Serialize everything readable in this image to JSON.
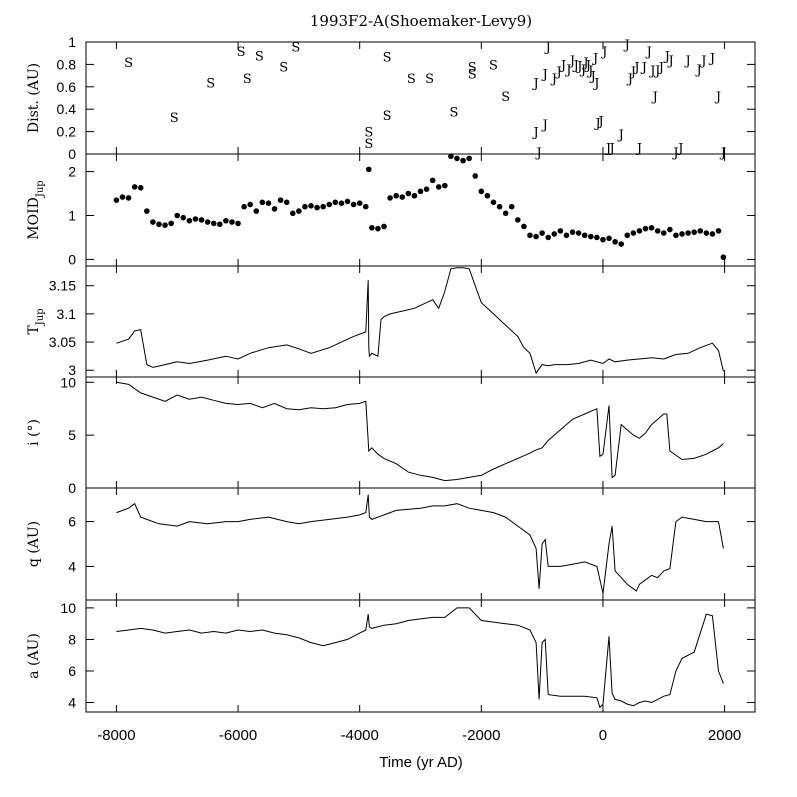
{
  "title": "1993F2-A(Shoemaker-Levy9)",
  "xlabel": "Time (yr AD)",
  "x_ticks": [
    "-8000",
    "-6000",
    "-4000",
    "-2000",
    "0",
    "2000"
  ],
  "panels": [
    {
      "id": "dist",
      "ylabel": "Dist. (AU)",
      "ylabel_sub": "",
      "ticks": [
        "0",
        "0.2",
        "0.4",
        "0.6",
        "0.8",
        "1"
      ]
    },
    {
      "id": "moid",
      "ylabel": "MOID",
      "ylabel_sub": "Jup",
      "ticks": [
        "0",
        "1",
        "2"
      ]
    },
    {
      "id": "tjup",
      "ylabel": "T",
      "ylabel_sub": "Jup",
      "ticks": [
        "3",
        "3.05",
        "3.1",
        "3.15"
      ]
    },
    {
      "id": "inc",
      "ylabel": "i (°)",
      "ylabel_sub": "",
      "ticks": [
        "0",
        "5",
        "10"
      ]
    },
    {
      "id": "q",
      "ylabel": "q (AU)",
      "ylabel_sub": "",
      "ticks": [
        "4",
        "6"
      ]
    },
    {
      "id": "a",
      "ylabel": "a (AU)",
      "ylabel_sub": "",
      "ticks": [
        "4",
        "6",
        "8",
        "10"
      ]
    }
  ],
  "chart_data": [
    {
      "type": "scatter",
      "panel": "dist",
      "ylabel": "Dist. (AU)",
      "xlim": [
        -8500,
        2500
      ],
      "ylim": [
        0,
        1
      ],
      "series": [
        {
          "label": "S",
          "points": [
            [
              -7800,
              0.82
            ],
            [
              -7050,
              0.33
            ],
            [
              -6450,
              0.64
            ],
            [
              -5950,
              0.92
            ],
            [
              -5850,
              0.68
            ],
            [
              -5650,
              0.88
            ],
            [
              -5250,
              0.78
            ],
            [
              -5050,
              0.96
            ],
            [
              -3850,
              0.2
            ],
            [
              -3850,
              0.1
            ],
            [
              -3550,
              0.35
            ],
            [
              -3550,
              0.87
            ],
            [
              -3150,
              0.68
            ],
            [
              -2850,
              0.68
            ],
            [
              -2450,
              0.38
            ],
            [
              -2150,
              0.72
            ],
            [
              -2150,
              0.78
            ],
            [
              -1800,
              0.8
            ],
            [
              -1600,
              0.52
            ]
          ]
        },
        {
          "label": "J",
          "points": [
            [
              -1100,
              0.64
            ],
            [
              -1100,
              0.2
            ],
            [
              -950,
              0.27
            ],
            [
              -950,
              0.72
            ],
            [
              -1050,
              0.02
            ],
            [
              -900,
              0.96
            ],
            [
              -800,
              0.68
            ],
            [
              -720,
              0.74
            ],
            [
              -650,
              0.8
            ],
            [
              -560,
              0.76
            ],
            [
              -500,
              0.84
            ],
            [
              -440,
              0.8
            ],
            [
              -380,
              0.79
            ],
            [
              -320,
              0.76
            ],
            [
              -280,
              0.82
            ],
            [
              -240,
              0.8
            ],
            [
              -200,
              0.75
            ],
            [
              -160,
              0.7
            ],
            [
              -120,
              0.86
            ],
            [
              -100,
              0.64
            ],
            [
              -80,
              0.28
            ],
            [
              -30,
              0.3
            ],
            [
              30,
              0.92
            ],
            [
              90,
              0.06
            ],
            [
              150,
              0.06
            ],
            [
              300,
              0.18
            ],
            [
              400,
              0.98
            ],
            [
              450,
              0.68
            ],
            [
              500,
              0.74
            ],
            [
              560,
              0.78
            ],
            [
              600,
              0.06
            ],
            [
              680,
              0.78
            ],
            [
              760,
              0.92
            ],
            [
              820,
              0.75
            ],
            [
              860,
              0.52
            ],
            [
              900,
              0.75
            ],
            [
              960,
              0.78
            ],
            [
              1060,
              0.88
            ],
            [
              1120,
              0.84
            ],
            [
              1200,
              0.02
            ],
            [
              1280,
              0.06
            ],
            [
              1400,
              0.84
            ],
            [
              1580,
              0.76
            ],
            [
              1660,
              0.84
            ],
            [
              1800,
              0.86
            ],
            [
              1900,
              0.52
            ],
            [
              1980,
              0.02
            ]
          ]
        }
      ]
    },
    {
      "type": "scatter",
      "panel": "moid",
      "ylabel": "MOID_Jup",
      "xlim": [
        -8500,
        2500
      ],
      "ylim": [
        -0.15,
        2.4
      ],
      "x": [
        -8000,
        -7900,
        -7800,
        -7700,
        -7600,
        -7500,
        -7400,
        -7300,
        -7200,
        -7100,
        -7000,
        -6900,
        -6800,
        -6700,
        -6600,
        -6500,
        -6400,
        -6300,
        -6200,
        -6100,
        -6000,
        -5900,
        -5800,
        -5700,
        -5600,
        -5500,
        -5400,
        -5300,
        -5200,
        -5100,
        -5000,
        -4900,
        -4800,
        -4700,
        -4600,
        -4500,
        -4400,
        -4300,
        -4200,
        -4100,
        -4000,
        -3900,
        -3850,
        -3800,
        -3700,
        -3600,
        -3500,
        -3400,
        -3300,
        -3200,
        -3100,
        -3000,
        -2900,
        -2800,
        -2700,
        -2600,
        -2500,
        -2400,
        -2300,
        -2200,
        -2100,
        -2000,
        -1900,
        -1800,
        -1700,
        -1600,
        -1500,
        -1400,
        -1300,
        -1200,
        -1100,
        -1000,
        -900,
        -800,
        -700,
        -600,
        -500,
        -400,
        -300,
        -200,
        -100,
        0,
        100,
        200,
        300,
        400,
        500,
        600,
        700,
        800,
        900,
        1000,
        1100,
        1200,
        1300,
        1400,
        1500,
        1600,
        1700,
        1800,
        1900,
        1980
      ],
      "values": [
        1.35,
        1.42,
        1.4,
        1.65,
        1.63,
        1.1,
        0.85,
        0.8,
        0.78,
        0.82,
        1.0,
        0.95,
        0.88,
        0.92,
        0.9,
        0.85,
        0.82,
        0.8,
        0.88,
        0.85,
        0.82,
        1.2,
        1.25,
        1.1,
        1.3,
        1.28,
        1.15,
        1.35,
        1.3,
        1.05,
        1.1,
        1.2,
        1.22,
        1.18,
        1.2,
        1.25,
        1.3,
        1.28,
        1.32,
        1.25,
        1.28,
        1.2,
        2.05,
        0.72,
        0.7,
        0.75,
        1.4,
        1.45,
        1.42,
        1.5,
        1.45,
        1.55,
        1.6,
        1.8,
        1.65,
        1.68,
        2.35,
        2.3,
        2.25,
        2.3,
        1.9,
        1.55,
        1.45,
        1.3,
        1.2,
        1.05,
        1.2,
        0.9,
        0.75,
        0.55,
        0.52,
        0.6,
        0.5,
        0.58,
        0.65,
        0.55,
        0.62,
        0.6,
        0.55,
        0.52,
        0.5,
        0.45,
        0.48,
        0.4,
        0.35,
        0.55,
        0.6,
        0.65,
        0.7,
        0.72,
        0.65,
        0.6,
        0.68,
        0.55,
        0.58,
        0.6,
        0.62,
        0.65,
        0.6,
        0.58,
        0.65,
        0.05
      ]
    },
    {
      "type": "line",
      "panel": "tjup",
      "ylabel": "T_Jup",
      "xlim": [
        -8500,
        2500
      ],
      "ylim": [
        2.988,
        3.185
      ],
      "x": [
        -8000,
        -7800,
        -7700,
        -7600,
        -7500,
        -7400,
        -7200,
        -7000,
        -6800,
        -6500,
        -6200,
        -6000,
        -5800,
        -5500,
        -5200,
        -5000,
        -4800,
        -4500,
        -4300,
        -4100,
        -3900,
        -3860,
        -3850,
        -3840,
        -3800,
        -3700,
        -3650,
        -3600,
        -3500,
        -3300,
        -3100,
        -3000,
        -2900,
        -2800,
        -2700,
        -2600,
        -2500,
        -2400,
        -2300,
        -2200,
        -2100,
        -2000,
        -1800,
        -1600,
        -1400,
        -1300,
        -1200,
        -1100,
        -1000,
        -900,
        -800,
        -600,
        -400,
        -200,
        0,
        100,
        200,
        400,
        600,
        800,
        1000,
        1200,
        1400,
        1600,
        1800,
        1900,
        1980
      ],
      "values": [
        3.048,
        3.055,
        3.07,
        3.072,
        3.01,
        3.005,
        3.01,
        3.015,
        3.012,
        3.018,
        3.025,
        3.02,
        3.03,
        3.04,
        3.045,
        3.038,
        3.03,
        3.04,
        3.05,
        3.06,
        3.068,
        3.16,
        3.04,
        3.025,
        3.03,
        3.025,
        3.09,
        3.095,
        3.1,
        3.105,
        3.11,
        3.115,
        3.12,
        3.125,
        3.11,
        3.14,
        3.18,
        3.182,
        3.182,
        3.18,
        3.15,
        3.12,
        3.1,
        3.08,
        3.06,
        3.04,
        3.03,
        2.995,
        3.01,
        3.008,
        3.01,
        3.01,
        3.012,
        3.018,
        3.012,
        3.02,
        3.015,
        3.018,
        3.02,
        3.022,
        3.02,
        3.028,
        3.03,
        3.04,
        3.048,
        3.035,
        2.998
      ]
    },
    {
      "type": "line",
      "panel": "inc",
      "ylabel": "i (°)",
      "xlim": [
        -8500,
        2500
      ],
      "ylim": [
        0,
        10.5
      ],
      "x": [
        -8000,
        -7800,
        -7600,
        -7400,
        -7200,
        -7000,
        -6800,
        -6600,
        -6400,
        -6200,
        -6000,
        -5800,
        -5600,
        -5400,
        -5200,
        -5000,
        -4800,
        -4600,
        -4400,
        -4200,
        -4000,
        -3900,
        -3850,
        -3800,
        -3700,
        -3600,
        -3400,
        -3200,
        -3000,
        -2800,
        -2600,
        -2400,
        -2200,
        -2000,
        -1800,
        -1600,
        -1400,
        -1200,
        -1100,
        -1000,
        -900,
        -700,
        -500,
        -300,
        -100,
        -50,
        0,
        100,
        150,
        200,
        300,
        400,
        500,
        600,
        700,
        800,
        900,
        1000,
        1050,
        1100,
        1300,
        1500,
        1700,
        1800,
        1900,
        1980
      ],
      "values": [
        10.0,
        9.8,
        9.0,
        8.6,
        8.2,
        8.8,
        8.4,
        8.6,
        8.3,
        8.0,
        7.9,
        8.0,
        7.6,
        8.0,
        7.5,
        7.4,
        7.6,
        7.5,
        7.6,
        7.9,
        8.0,
        8.2,
        3.5,
        3.8,
        3.2,
        2.8,
        2.3,
        1.5,
        1.2,
        1.0,
        0.7,
        0.8,
        1.0,
        1.2,
        1.8,
        2.3,
        2.8,
        3.3,
        3.6,
        3.8,
        4.5,
        5.5,
        6.5,
        7.0,
        7.5,
        3.0,
        3.2,
        7.8,
        1.0,
        1.2,
        6.0,
        5.5,
        5.0,
        4.7,
        5.2,
        6.0,
        6.5,
        7.0,
        7.0,
        3.5,
        2.7,
        2.8,
        3.2,
        3.5,
        3.8,
        4.2
      ]
    },
    {
      "type": "line",
      "panel": "q",
      "ylabel": "q (AU)",
      "xlim": [
        -8500,
        2500
      ],
      "ylim": [
        2.5,
        7.5
      ],
      "x": [
        -8000,
        -7800,
        -7700,
        -7600,
        -7500,
        -7300,
        -7000,
        -6800,
        -6500,
        -6200,
        -6000,
        -5800,
        -5500,
        -5200,
        -5000,
        -4800,
        -4500,
        -4200,
        -4000,
        -3900,
        -3860,
        -3840,
        -3800,
        -3600,
        -3400,
        -3000,
        -2800,
        -2600,
        -2400,
        -2200,
        -2000,
        -1800,
        -1600,
        -1400,
        -1200,
        -1100,
        -1050,
        -1000,
        -950,
        -900,
        -700,
        -500,
        -300,
        -100,
        0,
        100,
        150,
        200,
        300,
        400,
        500,
        550,
        600,
        700,
        800,
        900,
        1000,
        1100,
        1200,
        1300,
        1500,
        1700,
        1900,
        1980
      ],
      "values": [
        6.4,
        6.6,
        6.8,
        6.2,
        6.1,
        5.9,
        5.8,
        6.0,
        5.9,
        6.0,
        6.0,
        6.1,
        6.2,
        6.0,
        5.9,
        6.0,
        6.1,
        6.2,
        6.3,
        6.4,
        7.2,
        6.2,
        6.1,
        6.3,
        6.5,
        6.6,
        6.7,
        6.7,
        6.8,
        6.6,
        6.5,
        6.4,
        6.2,
        5.8,
        5.4,
        4.8,
        3.0,
        5.0,
        5.2,
        4.0,
        4.0,
        4.1,
        4.2,
        4.0,
        2.8,
        5.0,
        5.8,
        3.8,
        3.5,
        3.2,
        3.0,
        2.9,
        3.2,
        3.4,
        3.6,
        3.5,
        3.8,
        3.9,
        6.0,
        6.2,
        6.1,
        6.0,
        6.0,
        4.8
      ]
    },
    {
      "type": "line",
      "panel": "a",
      "ylabel": "a (AU)",
      "xlim": [
        -8500,
        2500
      ],
      "ylim": [
        3.4,
        10.5
      ],
      "x": [
        -8000,
        -7800,
        -7600,
        -7400,
        -7200,
        -7000,
        -6800,
        -6600,
        -6400,
        -6200,
        -6000,
        -5800,
        -5600,
        -5400,
        -5200,
        -5000,
        -4800,
        -4600,
        -4400,
        -4200,
        -4000,
        -3900,
        -3860,
        -3840,
        -3800,
        -3600,
        -3400,
        -3200,
        -3000,
        -2800,
        -2600,
        -2400,
        -2200,
        -2000,
        -1800,
        -1600,
        -1400,
        -1200,
        -1100,
        -1050,
        -1000,
        -950,
        -900,
        -700,
        -500,
        -300,
        -100,
        -50,
        0,
        100,
        150,
        200,
        300,
        400,
        500,
        600,
        700,
        800,
        900,
        1000,
        1100,
        1200,
        1300,
        1500,
        1700,
        1800,
        1900,
        1980
      ],
      "values": [
        8.5,
        8.6,
        8.7,
        8.6,
        8.4,
        8.5,
        8.6,
        8.4,
        8.5,
        8.4,
        8.6,
        8.5,
        8.6,
        8.4,
        8.3,
        8.1,
        7.8,
        7.6,
        7.8,
        8.0,
        8.4,
        8.6,
        9.6,
        8.8,
        8.7,
        8.9,
        9.0,
        9.2,
        9.3,
        9.4,
        9.4,
        10.0,
        10.0,
        9.2,
        9.1,
        9.0,
        8.9,
        8.6,
        7.8,
        4.2,
        7.8,
        8.0,
        4.5,
        4.4,
        4.4,
        4.4,
        4.3,
        3.7,
        3.9,
        8.2,
        4.6,
        4.2,
        4.1,
        3.9,
        3.8,
        4.0,
        4.1,
        4.0,
        4.2,
        4.4,
        4.5,
        6.0,
        6.8,
        7.2,
        9.6,
        9.5,
        6.0,
        5.2
      ]
    }
  ]
}
